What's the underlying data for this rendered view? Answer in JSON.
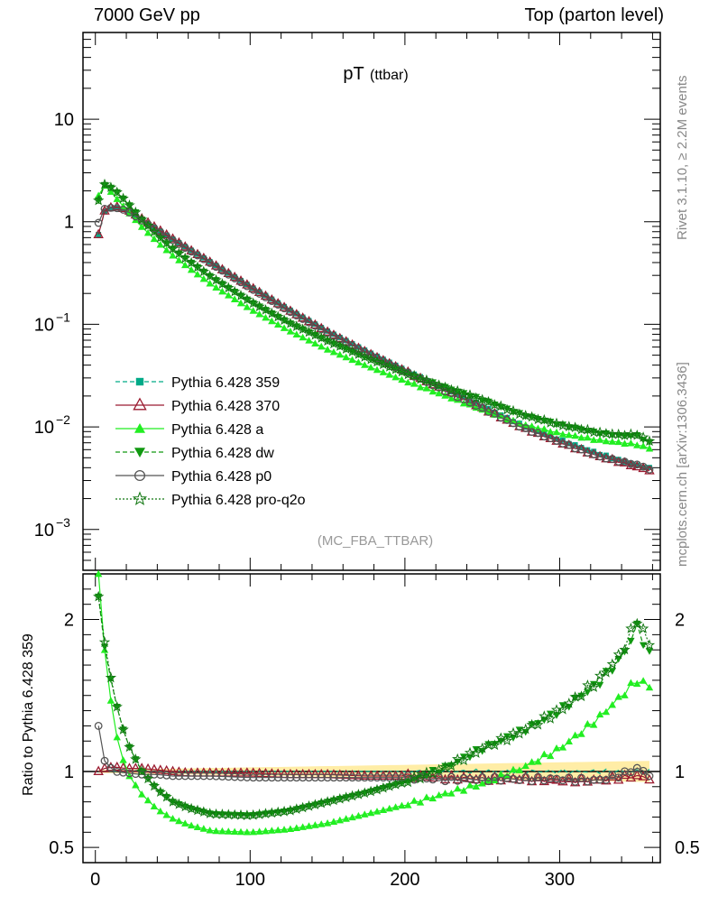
{
  "header": {
    "left": "7000 GeV pp",
    "right": "Top (parton level)"
  },
  "side_labels": {
    "rivet": "Rivet 3.1.10, ≥ 2.2M events",
    "mcplots": "mcplots.cern.ch [arXiv:1306.3436]"
  },
  "chart_data": {
    "type": "line",
    "title": "pT",
    "title_sub": "(ttbar)",
    "watermark": "(MC_FBA_TTBAR)",
    "ratio_ylabel": "Ratio to Pythia 6.428 359",
    "xlim": [
      -8,
      365
    ],
    "ylim_main": [
      0.0004,
      70
    ],
    "ylim_ratio": [
      0.4,
      2.3
    ],
    "log_y_main": true,
    "main_y_ticks": [
      "10",
      "1",
      "10",
      "10",
      "10"
    ],
    "main_y_tick_exps": [
      "",
      "",
      "−1",
      "−2",
      "−3"
    ],
    "ratio_y_ticks": [
      "2",
      "1",
      "0.5"
    ],
    "x_ticks": [
      "0",
      "100",
      "200",
      "300"
    ],
    "legend_placement": "left-middle of main panel",
    "series": [
      {
        "name": "Pythia 6.428 359",
        "color": "#00aa88",
        "marker": "square",
        "dash": "dashed"
      },
      {
        "name": "Pythia 6.428 370",
        "color": "#9b1b30",
        "marker": "open-triangle",
        "dash": "solid"
      },
      {
        "name": "Pythia 6.428 a",
        "color": "#22ee22",
        "marker": "triangle",
        "dash": "solid"
      },
      {
        "name": "Pythia 6.428 dw",
        "color": "#119911",
        "marker": "down-triangle",
        "dash": "dashed"
      },
      {
        "name": "Pythia 6.428 p0",
        "color": "#555555",
        "marker": "open-circle",
        "dash": "solid"
      },
      {
        "name": "Pythia 6.428 pro-q2o",
        "color": "#117711",
        "marker": "star",
        "dash": "dotted"
      }
    ],
    "main_anchors": {
      "x": [
        2,
        6,
        12,
        20,
        30,
        50,
        75,
        100,
        125,
        150,
        175,
        200,
        225,
        250,
        275,
        300,
        325,
        350,
        360
      ],
      "ref": [
        0.75,
        1.25,
        1.38,
        1.3,
        1.05,
        0.68,
        0.4,
        0.235,
        0.14,
        0.086,
        0.055,
        0.036,
        0.024,
        0.016,
        0.0105,
        0.0075,
        0.0055,
        0.0042,
        0.0039
      ]
    },
    "ratio_anchors": {
      "x": [
        2,
        6,
        12,
        20,
        30,
        40,
        50,
        60,
        75,
        100,
        125,
        150,
        175,
        200,
        225,
        250,
        275,
        300,
        325,
        340,
        350,
        360
      ],
      "Pythia 6.428 370": [
        1.0,
        1.02,
        1.03,
        1.02,
        1.02,
        1.01,
        1.0,
        0.99,
        0.99,
        0.99,
        0.98,
        0.98,
        0.97,
        0.97,
        0.96,
        0.95,
        0.95,
        0.94,
        0.94,
        0.96,
        0.97,
        0.95
      ],
      "Pythia 6.428 a": [
        2.4,
        1.8,
        1.3,
        1.0,
        0.85,
        0.75,
        0.69,
        0.65,
        0.61,
        0.6,
        0.62,
        0.66,
        0.72,
        0.78,
        0.85,
        0.92,
        1.02,
        1.15,
        1.35,
        1.5,
        1.6,
        1.55
      ],
      "Pythia 6.428 dw": [
        2.15,
        1.82,
        1.5,
        1.2,
        1.0,
        0.88,
        0.8,
        0.76,
        0.72,
        0.71,
        0.74,
        0.8,
        0.86,
        0.93,
        1.02,
        1.15,
        1.26,
        1.4,
        1.58,
        1.75,
        1.95,
        1.72
      ],
      "Pythia 6.428 p0": [
        1.3,
        1.07,
        1.0,
        0.99,
        0.98,
        0.98,
        0.97,
        0.97,
        0.97,
        0.96,
        0.96,
        0.96,
        0.96,
        0.96,
        0.95,
        0.95,
        0.95,
        0.95,
        0.94,
        0.98,
        1.02,
        0.97
      ],
      "Pythia 6.428 pro-q2o": [
        2.15,
        1.85,
        1.5,
        1.2,
        1.0,
        0.88,
        0.8,
        0.76,
        0.72,
        0.71,
        0.74,
        0.8,
        0.86,
        0.93,
        1.02,
        1.15,
        1.26,
        1.4,
        1.6,
        1.78,
        2.0,
        1.8
      ]
    },
    "bin_step": 4,
    "bin_start": 2,
    "bin_end": 358
  }
}
